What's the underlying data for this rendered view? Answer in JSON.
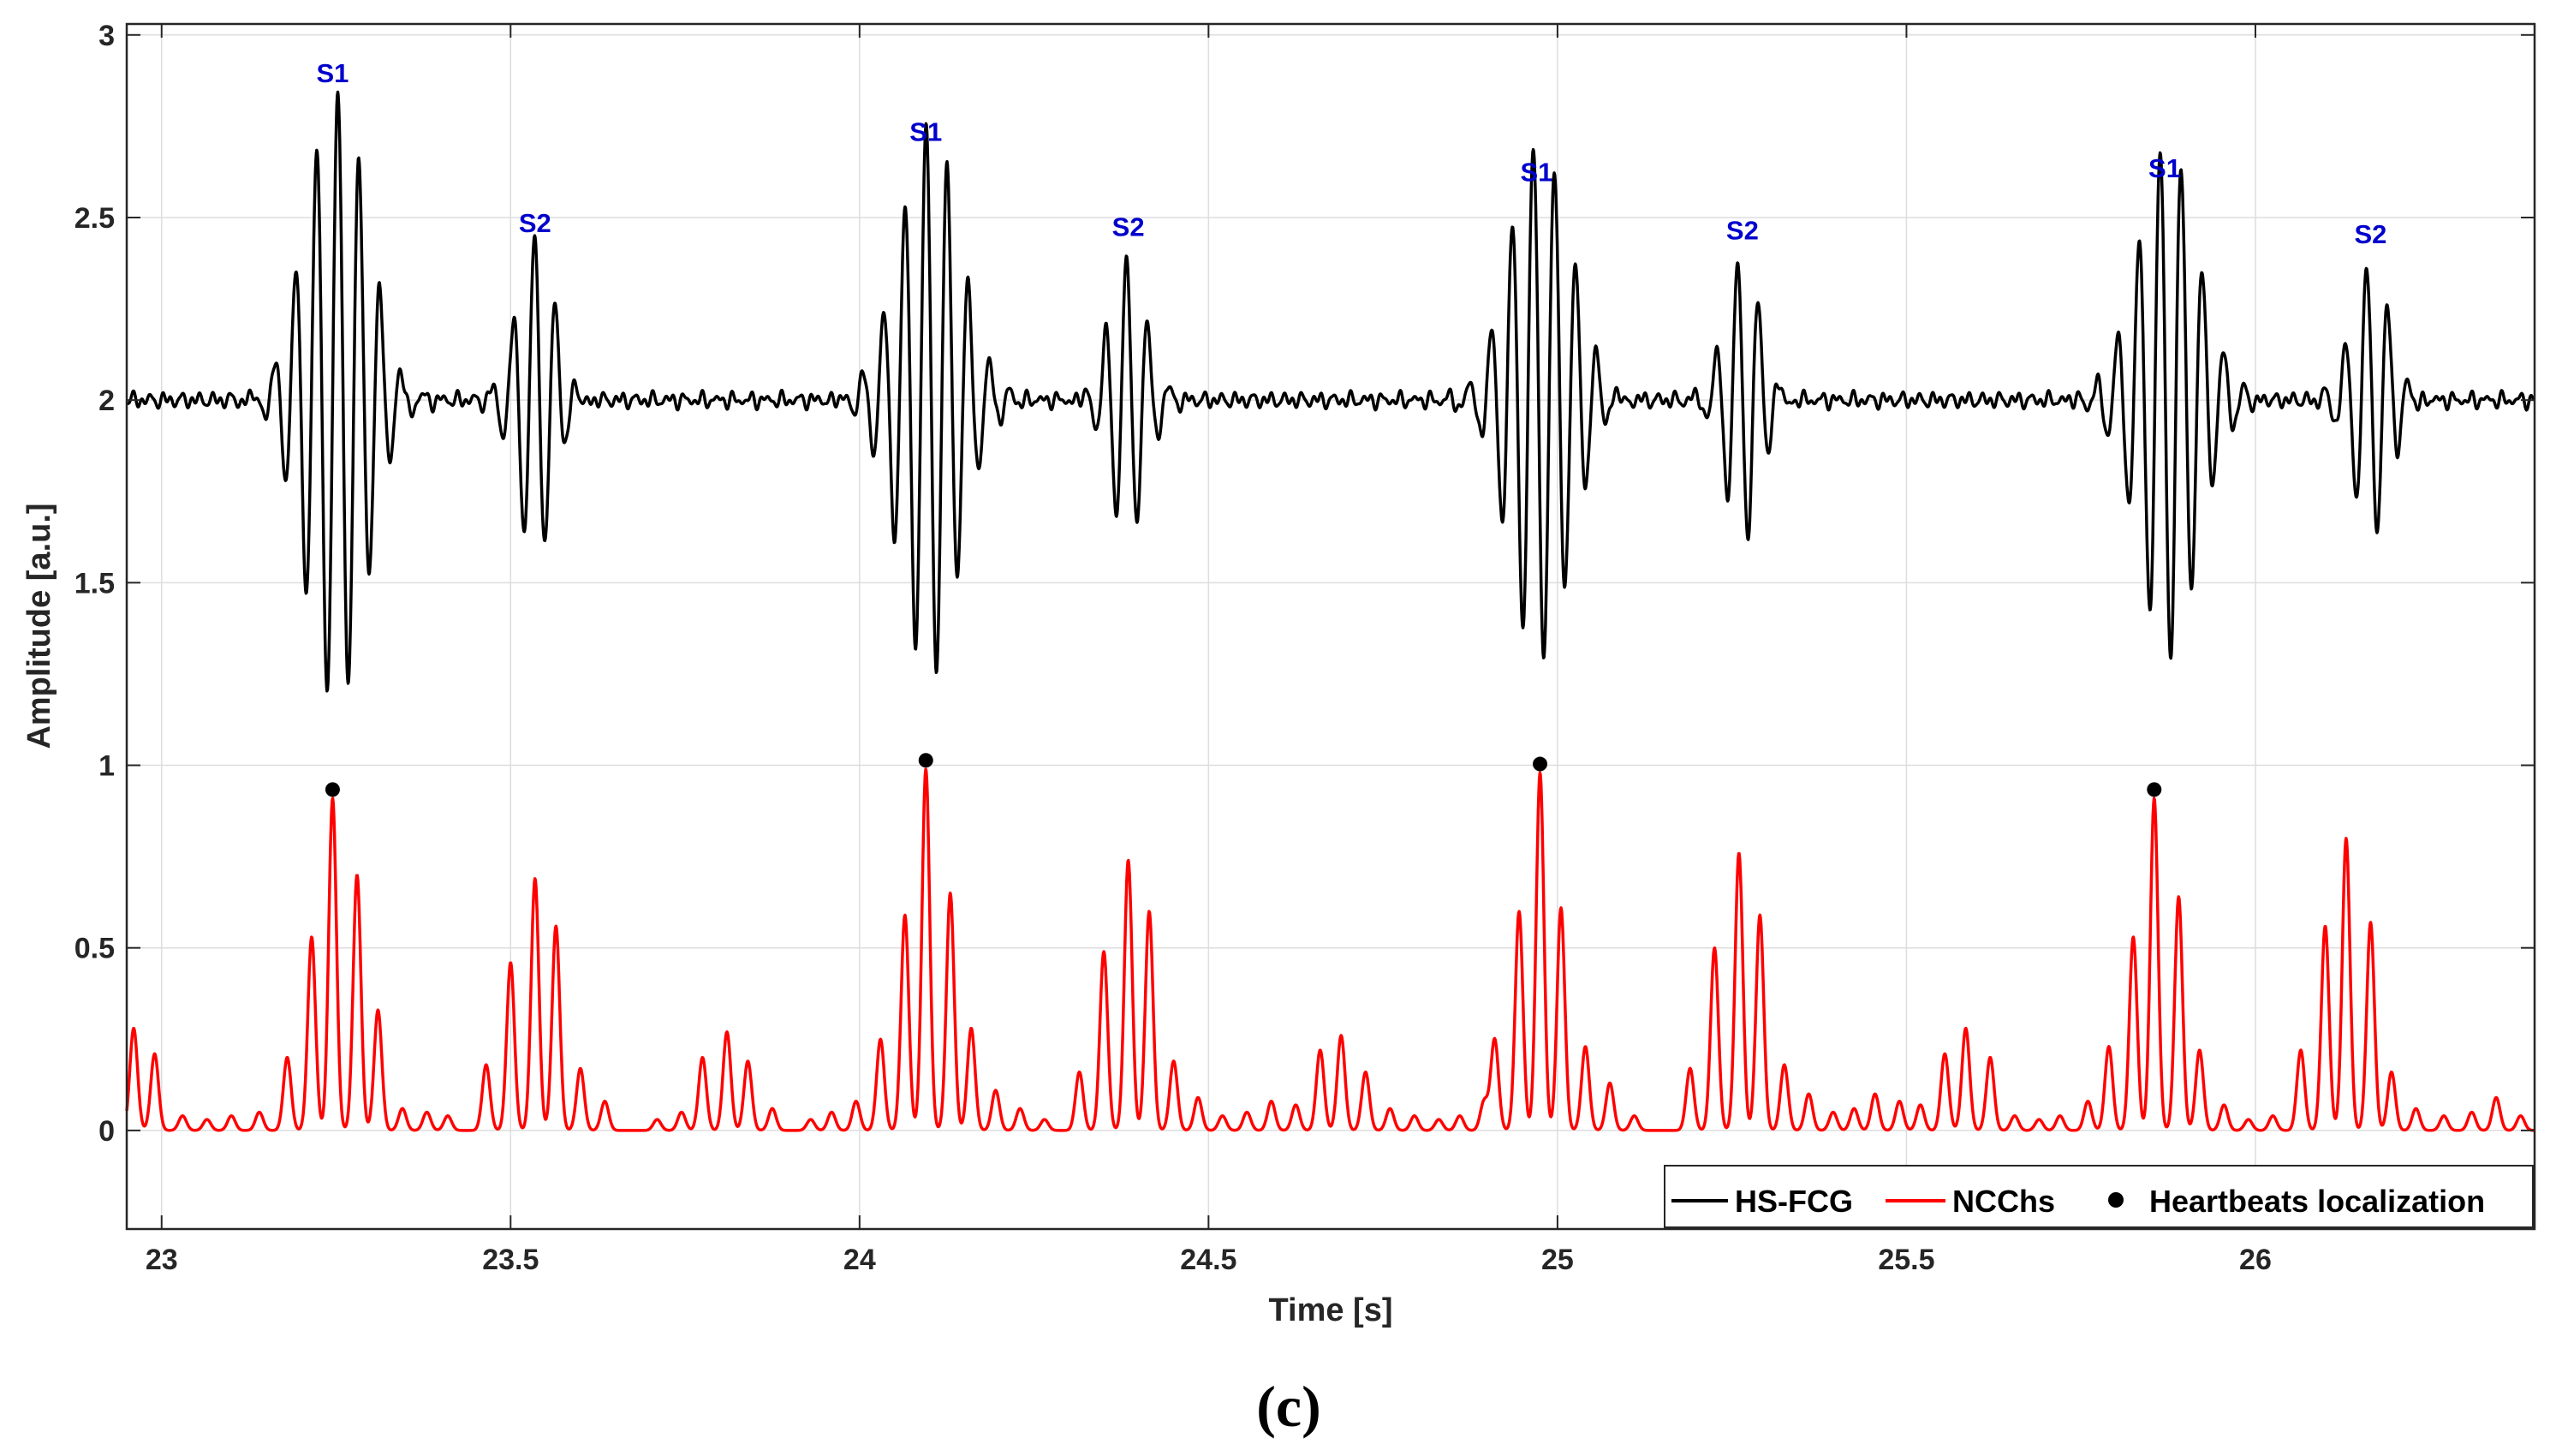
{
  "chart_data": {
    "type": "line",
    "title": "",
    "xlabel": "Time [s]",
    "ylabel": "Amplitude [a.u.]",
    "xlim": [
      22.95,
      26.4
    ],
    "ylim": [
      -0.27,
      3.03
    ],
    "grid": true,
    "x_ticks": [
      23,
      23.5,
      24,
      24.5,
      25,
      25.5,
      26
    ],
    "x_tick_labels": [
      "23",
      "23.5",
      "24",
      "24.5",
      "25",
      "25.5",
      "26"
    ],
    "y_ticks": [
      0,
      0.5,
      1,
      1.5,
      2,
      2.5,
      3
    ],
    "y_tick_labels": [
      "0",
      "0.5",
      "1",
      "1.5",
      "2",
      "2.5",
      "3"
    ],
    "series": [
      {
        "name": "HS-FCG",
        "color": "#000000",
        "baseline": 2.0,
        "bursts": [
          {
            "t": 23.25,
            "amp": 0.85,
            "width": 0.065,
            "freq": 33,
            "phase": -0.5
          },
          {
            "t": 23.535,
            "amp": 0.45,
            "width": 0.04,
            "freq": 33,
            "phase": 0.2
          },
          {
            "t": 24.1,
            "amp": 0.75,
            "width": 0.065,
            "freq": 33,
            "phase": 1.0
          },
          {
            "t": 24.385,
            "amp": 0.38,
            "width": 0.04,
            "freq": 33,
            "phase": 0.5
          },
          {
            "t": 24.975,
            "amp": 0.72,
            "width": 0.065,
            "freq": 33,
            "phase": 2.0
          },
          {
            "t": 25.265,
            "amp": 0.38,
            "width": 0.04,
            "freq": 33,
            "phase": 1.5
          },
          {
            "t": 25.875,
            "amp": 0.7,
            "width": 0.065,
            "freq": 33,
            "phase": 2.4
          },
          {
            "t": 26.165,
            "amp": 0.38,
            "width": 0.04,
            "freq": 33,
            "phase": 1.2
          }
        ]
      },
      {
        "name": "NCChs",
        "color": "#ff0000",
        "peaks": [
          [
            22.96,
            0.28
          ],
          [
            22.99,
            0.21
          ],
          [
            23.03,
            0.04
          ],
          [
            23.065,
            0.03
          ],
          [
            23.1,
            0.04
          ],
          [
            23.14,
            0.05
          ],
          [
            23.18,
            0.2
          ],
          [
            23.215,
            0.53
          ],
          [
            23.245,
            0.91
          ],
          [
            23.28,
            0.7
          ],
          [
            23.31,
            0.33
          ],
          [
            23.345,
            0.06
          ],
          [
            23.38,
            0.05
          ],
          [
            23.41,
            0.04
          ],
          [
            23.465,
            0.18
          ],
          [
            23.5,
            0.46
          ],
          [
            23.535,
            0.69
          ],
          [
            23.565,
            0.56
          ],
          [
            23.6,
            0.17
          ],
          [
            23.635,
            0.08
          ],
          [
            23.71,
            0.03
          ],
          [
            23.745,
            0.05
          ],
          [
            23.775,
            0.2
          ],
          [
            23.81,
            0.27
          ],
          [
            23.84,
            0.19
          ],
          [
            23.875,
            0.06
          ],
          [
            23.93,
            0.03
          ],
          [
            23.96,
            0.05
          ],
          [
            23.995,
            0.08
          ],
          [
            24.03,
            0.25
          ],
          [
            24.065,
            0.59
          ],
          [
            24.095,
            0.99
          ],
          [
            24.13,
            0.65
          ],
          [
            24.16,
            0.28
          ],
          [
            24.195,
            0.11
          ],
          [
            24.23,
            0.06
          ],
          [
            24.265,
            0.03
          ],
          [
            24.315,
            0.16
          ],
          [
            24.35,
            0.49
          ],
          [
            24.385,
            0.74
          ],
          [
            24.415,
            0.6
          ],
          [
            24.45,
            0.19
          ],
          [
            24.485,
            0.09
          ],
          [
            24.52,
            0.04
          ],
          [
            24.555,
            0.05
          ],
          [
            24.59,
            0.08
          ],
          [
            24.625,
            0.07
          ],
          [
            24.66,
            0.22
          ],
          [
            24.69,
            0.26
          ],
          [
            24.725,
            0.16
          ],
          [
            24.76,
            0.06
          ],
          [
            24.795,
            0.04
          ],
          [
            24.83,
            0.03
          ],
          [
            24.86,
            0.04
          ],
          [
            24.895,
            0.08
          ],
          [
            24.91,
            0.25
          ],
          [
            24.945,
            0.6
          ],
          [
            24.975,
            0.98
          ],
          [
            25.005,
            0.61
          ],
          [
            25.04,
            0.23
          ],
          [
            25.075,
            0.13
          ],
          [
            25.11,
            0.04
          ],
          [
            25.19,
            0.17
          ],
          [
            25.225,
            0.5
          ],
          [
            25.26,
            0.76
          ],
          [
            25.29,
            0.59
          ],
          [
            25.325,
            0.18
          ],
          [
            25.36,
            0.1
          ],
          [
            25.395,
            0.05
          ],
          [
            25.425,
            0.06
          ],
          [
            25.455,
            0.1
          ],
          [
            25.49,
            0.08
          ],
          [
            25.52,
            0.07
          ],
          [
            25.555,
            0.21
          ],
          [
            25.585,
            0.28
          ],
          [
            25.62,
            0.2
          ],
          [
            25.655,
            0.04
          ],
          [
            25.69,
            0.03
          ],
          [
            25.72,
            0.04
          ],
          [
            25.76,
            0.08
          ],
          [
            25.79,
            0.23
          ],
          [
            25.825,
            0.53
          ],
          [
            25.855,
            0.91
          ],
          [
            25.89,
            0.64
          ],
          [
            25.92,
            0.22
          ],
          [
            25.955,
            0.07
          ],
          [
            25.99,
            0.03
          ],
          [
            26.025,
            0.04
          ],
          [
            26.065,
            0.22
          ],
          [
            26.1,
            0.56
          ],
          [
            26.13,
            0.8
          ],
          [
            26.165,
            0.57
          ],
          [
            26.195,
            0.16
          ],
          [
            26.23,
            0.06
          ],
          [
            26.27,
            0.04
          ],
          [
            26.31,
            0.05
          ],
          [
            26.345,
            0.09
          ],
          [
            26.38,
            0.04
          ]
        ]
      },
      {
        "name": "Heartbeats localization",
        "color": "#000000",
        "points": [
          [
            23.245,
            0.91
          ],
          [
            24.095,
            0.99
          ],
          [
            24.975,
            0.98
          ],
          [
            25.855,
            0.91
          ]
        ]
      }
    ],
    "annotations": [
      {
        "text": "S1",
        "x": 23.245,
        "y": 2.87
      },
      {
        "text": "S2",
        "x": 23.535,
        "y": 2.46
      },
      {
        "text": "S1",
        "x": 24.095,
        "y": 2.71
      },
      {
        "text": "S2",
        "x": 24.385,
        "y": 2.45
      },
      {
        "text": "S1",
        "x": 24.97,
        "y": 2.6
      },
      {
        "text": "S2",
        "x": 25.265,
        "y": 2.44
      },
      {
        "text": "S1",
        "x": 25.87,
        "y": 2.61
      },
      {
        "text": "S2",
        "x": 26.165,
        "y": 2.43
      }
    ],
    "legend": {
      "placement": "bottom-right",
      "entries": [
        "HS-FCG",
        "NCChs",
        "Heartbeats localization"
      ]
    }
  },
  "caption": "(c)"
}
